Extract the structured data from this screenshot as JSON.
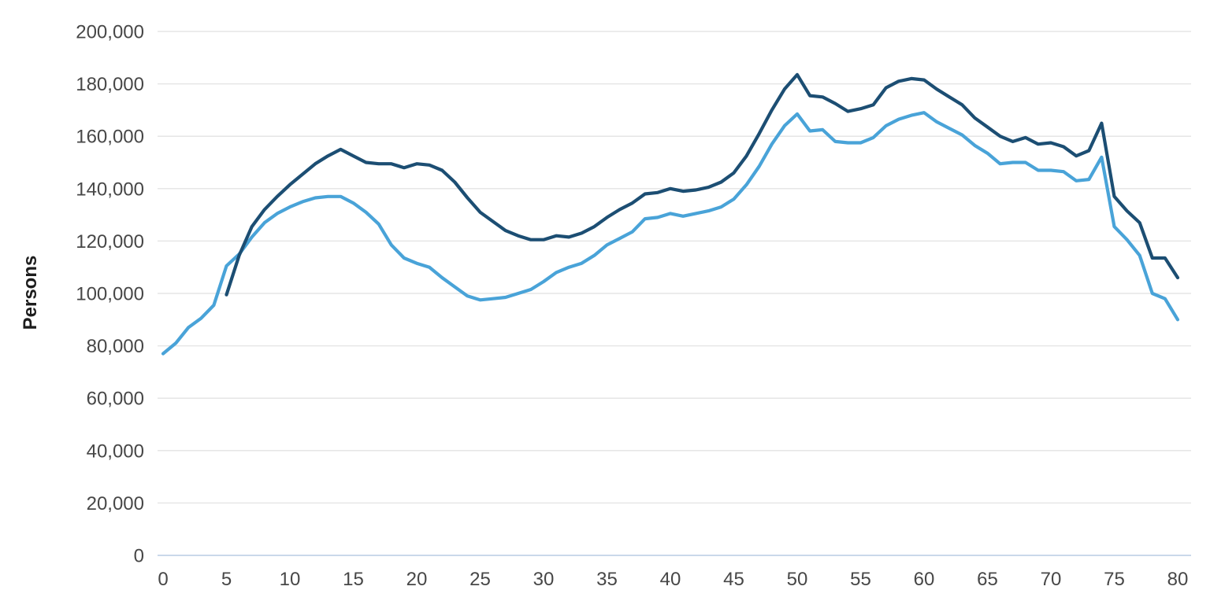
{
  "chart_data": {
    "type": "line",
    "title": "",
    "ylabel": "Persons",
    "xlabel": "",
    "xlim": [
      0,
      80
    ],
    "ylim": [
      0,
      200000
    ],
    "grid": "horizontal-only",
    "legend": "none",
    "background": "#ffffff",
    "gridline_color": "#e6e6e6",
    "baseline_color": "#b9cce4",
    "tick_label_color": "#474747",
    "y_ticks": [
      {
        "value": 0,
        "label": "0"
      },
      {
        "value": 20000,
        "label": "20,000"
      },
      {
        "value": 40000,
        "label": "40,000"
      },
      {
        "value": 60000,
        "label": "60,000"
      },
      {
        "value": 80000,
        "label": "80,000"
      },
      {
        "value": 100000,
        "label": "100,000"
      },
      {
        "value": 120000,
        "label": "120,000"
      },
      {
        "value": 140000,
        "label": "140,000"
      },
      {
        "value": 160000,
        "label": "160,000"
      },
      {
        "value": 180000,
        "label": "180,000"
      },
      {
        "value": 200000,
        "label": "200,000"
      }
    ],
    "x_ticks": [
      {
        "value": 0,
        "label": "0"
      },
      {
        "value": 5,
        "label": "5"
      },
      {
        "value": 10,
        "label": "10"
      },
      {
        "value": 15,
        "label": "15"
      },
      {
        "value": 20,
        "label": "20"
      },
      {
        "value": 25,
        "label": "25"
      },
      {
        "value": 30,
        "label": "30"
      },
      {
        "value": 35,
        "label": "35"
      },
      {
        "value": 40,
        "label": "40"
      },
      {
        "value": 45,
        "label": "45"
      },
      {
        "value": 50,
        "label": "50"
      },
      {
        "value": 55,
        "label": "55"
      },
      {
        "value": 60,
        "label": "60"
      },
      {
        "value": 65,
        "label": "65"
      },
      {
        "value": 70,
        "label": "70"
      },
      {
        "value": 75,
        "label": "75"
      },
      {
        "value": 80,
        "label": "80"
      }
    ],
    "series": [
      {
        "name": "light-blue-series",
        "color": "#49a3d8",
        "line_width": 4.2,
        "start_x": 0,
        "values": [
          77000,
          81000,
          87000,
          90500,
          95500,
          110500,
          115000,
          121500,
          127000,
          130500,
          133000,
          135000,
          136500,
          137000,
          137000,
          134500,
          131000,
          126500,
          118500,
          113500,
          111500,
          110000,
          106000,
          102500,
          99000,
          97500,
          98000,
          98500,
          100000,
          101500,
          104500,
          108000,
          110000,
          111500,
          114500,
          118500,
          121000,
          123500,
          128500,
          129000,
          130500,
          129500,
          130500,
          131500,
          133000,
          136000,
          141500,
          148500,
          157000,
          164000,
          168500,
          162000,
          162500,
          158000,
          157500,
          157500,
          159500,
          164000,
          166500,
          168000,
          169000,
          165500,
          163000,
          160500,
          156500,
          153500,
          149500,
          150000,
          150000,
          147000,
          147000,
          146500,
          143000,
          143500,
          152000,
          125500,
          120500,
          114500,
          100000,
          98000,
          90000
        ]
      },
      {
        "name": "dark-blue-series",
        "color": "#1c4e73",
        "line_width": 4.2,
        "start_x": 5,
        "values": [
          99500,
          114500,
          125500,
          132000,
          137000,
          141500,
          145500,
          149500,
          152500,
          155000,
          152500,
          150000,
          149500,
          149500,
          148000,
          149500,
          149000,
          147000,
          142500,
          136500,
          131000,
          127500,
          124000,
          122000,
          120500,
          120500,
          122000,
          121500,
          123000,
          125500,
          129000,
          132000,
          134500,
          138000,
          138500,
          140000,
          139000,
          139500,
          140500,
          142500,
          146000,
          152500,
          161000,
          170000,
          178000,
          183500,
          175500,
          175000,
          172500,
          169500,
          170500,
          172000,
          178500,
          181000,
          182000,
          181500,
          178000,
          175000,
          172000,
          167000,
          163500,
          160000,
          158000,
          159500,
          157000,
          157500,
          156000,
          152500,
          154500,
          165000,
          137000,
          131500,
          127000,
          113500,
          113500,
          106000
        ]
      }
    ]
  }
}
